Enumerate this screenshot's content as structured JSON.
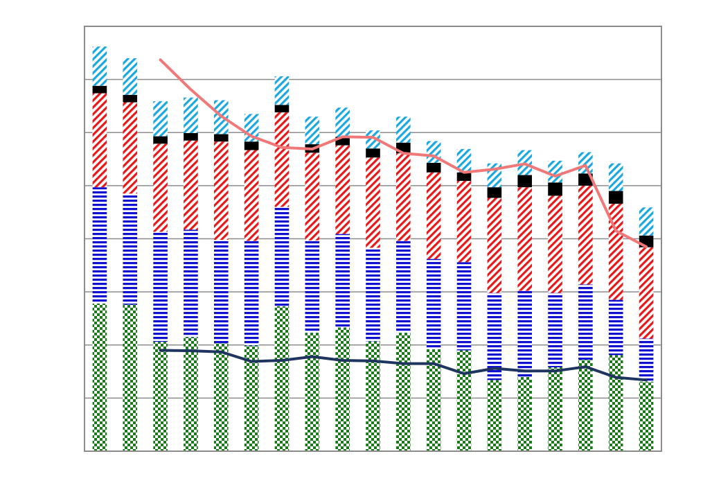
{
  "chart_data": {
    "type": "bar",
    "stacked": true,
    "title": "",
    "xlabel": "",
    "ylabel": "",
    "ylim": [
      0,
      8
    ],
    "grid": true,
    "tick_labels_visible": false,
    "categories": [
      "",
      "",
      "",
      "",
      "",
      "",
      "",
      "",
      "",
      "",
      "",
      "",
      "",
      "",
      "",
      "",
      "",
      "",
      ""
    ],
    "series": [
      {
        "kind": "bar",
        "pattern": "checker",
        "color": "#1a7a1a",
        "values": [
          2.78,
          2.76,
          2.06,
          2.15,
          2.03,
          1.99,
          2.73,
          2.23,
          2.33,
          2.07,
          2.23,
          1.92,
          1.9,
          1.34,
          1.4,
          1.58,
          1.72,
          1.81,
          1.31
        ]
      },
      {
        "kind": "bar",
        "pattern": "horizontal-stripes",
        "color": "#1010d0",
        "values": [
          2.19,
          2.09,
          2.07,
          2.02,
          1.95,
          1.97,
          1.87,
          1.74,
          1.76,
          1.76,
          1.73,
          1.7,
          1.66,
          1.64,
          1.62,
          1.4,
          1.42,
          1.04,
          0.81
        ]
      },
      {
        "kind": "bar",
        "pattern": "diagonal-stripes",
        "color": "#e81818",
        "values": [
          1.77,
          1.72,
          1.66,
          1.68,
          1.85,
          1.71,
          1.78,
          1.65,
          1.67,
          1.7,
          1.65,
          1.63,
          1.53,
          1.79,
          1.95,
          1.83,
          1.86,
          1.81,
          1.72
        ]
      },
      {
        "kind": "bar",
        "pattern": "solid",
        "color": "#000000",
        "values": [
          0.14,
          0.14,
          0.14,
          0.14,
          0.14,
          0.16,
          0.14,
          0.16,
          0.16,
          0.17,
          0.2,
          0.18,
          0.16,
          0.2,
          0.23,
          0.25,
          0.23,
          0.24,
          0.22
        ]
      },
      {
        "kind": "bar",
        "pattern": "diagonal-stripes",
        "color": "#1aa8e0",
        "values": [
          0.74,
          0.69,
          0.66,
          0.67,
          0.64,
          0.52,
          0.54,
          0.52,
          0.55,
          0.34,
          0.49,
          0.41,
          0.44,
          0.45,
          0.47,
          0.41,
          0.4,
          0.52,
          0.53
        ]
      },
      {
        "kind": "line",
        "color": "#f07878",
        "values": [
          null,
          null,
          7.37,
          6.81,
          6.31,
          5.93,
          5.72,
          5.69,
          5.92,
          5.91,
          5.61,
          5.56,
          5.25,
          5.31,
          5.41,
          5.18,
          5.38,
          4.15,
          3.85
        ]
      },
      {
        "kind": "line",
        "color": "#1f3560",
        "values": [
          null,
          null,
          1.9,
          1.89,
          1.87,
          1.69,
          1.71,
          1.78,
          1.71,
          1.7,
          1.65,
          1.65,
          1.46,
          1.56,
          1.51,
          1.51,
          1.59,
          1.39,
          1.34
        ]
      }
    ]
  }
}
